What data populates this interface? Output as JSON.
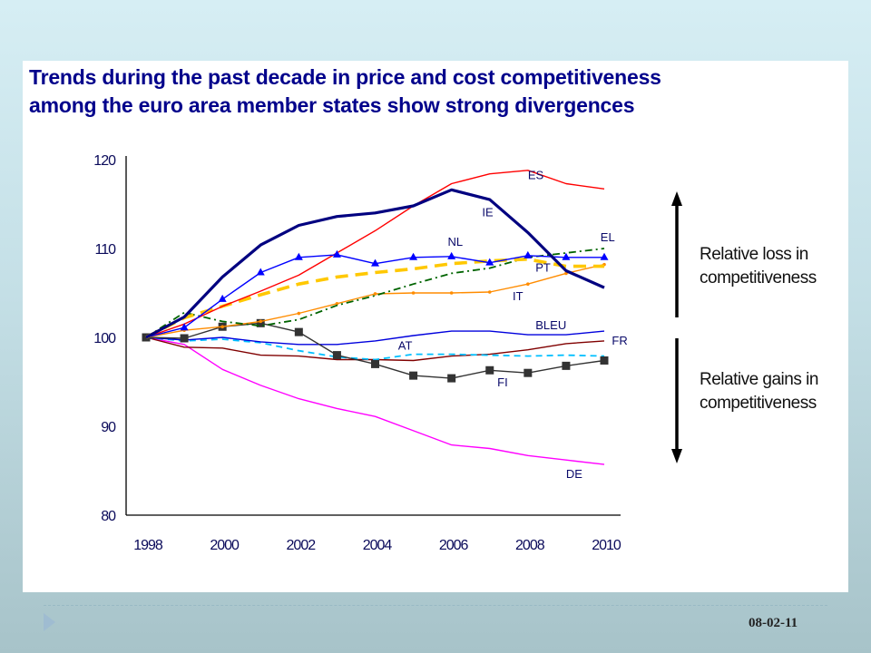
{
  "slide": {
    "title_line1": "Trends during the past decade in price and cost competitiveness",
    "title_line2": "among the euro area member states show strong divergences",
    "footer_date": "08-02-11",
    "annotations": {
      "up_line1": "Relative loss in",
      "up_line2": "competitiveness",
      "down_line1": "Relative gains in",
      "down_line2": "competitiveness"
    },
    "colors": {
      "title": "#00008b",
      "background_top": "#d6eef4",
      "background_bottom": "#a7c3c9"
    }
  },
  "chart_data": {
    "type": "line",
    "title": "",
    "xlabel": "",
    "ylabel": "",
    "x": [
      1998,
      1999,
      2000,
      2001,
      2002,
      2003,
      2004,
      2005,
      2006,
      2007,
      2008,
      2009,
      2010
    ],
    "xticks": [
      "1998",
      "2000",
      "2002",
      "2004",
      "2006",
      "2008",
      "2010"
    ],
    "yticks": [
      "80",
      "90",
      "100",
      "110",
      "120"
    ],
    "ylim": [
      80,
      120
    ],
    "xlim": [
      1998,
      2010
    ],
    "grid": false,
    "legend": "inline labels",
    "series": [
      {
        "name": "ES",
        "color": "#ff0000",
        "style": "solid",
        "marker": "none",
        "values": [
          100,
          101.5,
          103.5,
          105.2,
          107.0,
          109.5,
          112.0,
          114.8,
          117.3,
          118.4,
          118.8,
          117.3,
          116.7
        ]
      },
      {
        "name": "IE",
        "color": "#000080",
        "style": "solid-thick",
        "marker": "none",
        "values": [
          100,
          102.3,
          106.8,
          110.4,
          112.6,
          113.6,
          114.0,
          114.8,
          116.6,
          115.5,
          111.8,
          107.5,
          105.6
        ]
      },
      {
        "name": "NL",
        "color": "#0000ff",
        "style": "solid",
        "marker": "triangle",
        "values": [
          100,
          101.1,
          104.3,
          107.3,
          109.0,
          109.3,
          108.3,
          109.0,
          109.1,
          108.4,
          109.2,
          109.0,
          109.0
        ]
      },
      {
        "name": "EL",
        "color": "#006400",
        "style": "dash-dot",
        "marker": "none",
        "values": [
          100,
          102.8,
          101.8,
          101.3,
          102.0,
          103.6,
          104.7,
          106.0,
          107.2,
          107.8,
          109.0,
          109.5,
          110.0
        ]
      },
      {
        "name": "PT",
        "color": "#ffc800",
        "style": "dashed-thick",
        "marker": "none",
        "values": [
          100,
          102.2,
          103.5,
          104.8,
          106.0,
          106.8,
          107.3,
          107.7,
          108.3,
          108.6,
          108.8,
          108.0,
          108.0
        ]
      },
      {
        "name": "IT",
        "color": "#ff8c00",
        "style": "solid",
        "marker": "dot",
        "values": [
          100,
          100.8,
          101.2,
          101.8,
          102.7,
          103.8,
          104.9,
          105.0,
          105.0,
          105.1,
          106.0,
          107.2,
          108.2
        ]
      },
      {
        "name": "BLEU",
        "color": "#0000dd",
        "style": "solid",
        "marker": "none",
        "values": [
          100,
          99.7,
          100.0,
          99.5,
          99.2,
          99.2,
          99.6,
          100.2,
          100.7,
          100.7,
          100.3,
          100.3,
          100.7
        ]
      },
      {
        "name": "FR",
        "color": "#800000",
        "style": "solid",
        "marker": "none",
        "values": [
          100,
          98.9,
          98.8,
          98.0,
          97.9,
          97.5,
          97.5,
          97.4,
          97.9,
          98.1,
          98.6,
          99.3,
          99.6
        ]
      },
      {
        "name": "AT",
        "color": "#00bfff",
        "style": "dashed",
        "marker": "none",
        "values": [
          100,
          99.6,
          99.8,
          99.4,
          98.5,
          97.8,
          97.5,
          98.1,
          98.1,
          98.0,
          97.9,
          98.0,
          97.9
        ]
      },
      {
        "name": "FI",
        "color": "#333333",
        "style": "solid",
        "marker": "square",
        "values": [
          100,
          99.9,
          101.2,
          101.6,
          100.6,
          98.0,
          97.0,
          95.7,
          95.4,
          96.3,
          96.0,
          96.8,
          97.4
        ]
      },
      {
        "name": "DE",
        "color": "#ff00ff",
        "style": "solid",
        "marker": "none",
        "values": [
          100,
          99.2,
          96.4,
          94.6,
          93.1,
          92.0,
          91.1,
          89.5,
          87.9,
          87.5,
          86.7,
          86.2,
          85.7
        ]
      }
    ],
    "series_labels": [
      {
        "series": "ES",
        "text": "ES",
        "at_year": 2008,
        "at_value": 117.8
      },
      {
        "series": "IE",
        "text": "IE",
        "at_year": 2006.8,
        "at_value": 113.6
      },
      {
        "series": "NL",
        "text": "NL",
        "at_year": 2005.9,
        "at_value": 110.3
      },
      {
        "series": "EL",
        "text": "EL",
        "at_year": 2009.9,
        "at_value": 110.8
      },
      {
        "series": "PT",
        "text": "PT",
        "at_year": 2008.2,
        "at_value": 107.4
      },
      {
        "series": "IT",
        "text": "IT",
        "at_year": 2007.6,
        "at_value": 104.2
      },
      {
        "series": "BLEU",
        "text": "BLEU",
        "at_year": 2008.2,
        "at_value": 100.9
      },
      {
        "series": "FR",
        "text": "FR",
        "at_year": 2010.2,
        "at_value": 99.2
      },
      {
        "series": "AT",
        "text": "AT",
        "at_year": 2004.6,
        "at_value": 98.6
      },
      {
        "series": "FI",
        "text": "FI",
        "at_year": 2007.2,
        "at_value": 94.5
      },
      {
        "series": "DE",
        "text": "DE",
        "at_year": 2009.0,
        "at_value": 84.2
      }
    ]
  }
}
